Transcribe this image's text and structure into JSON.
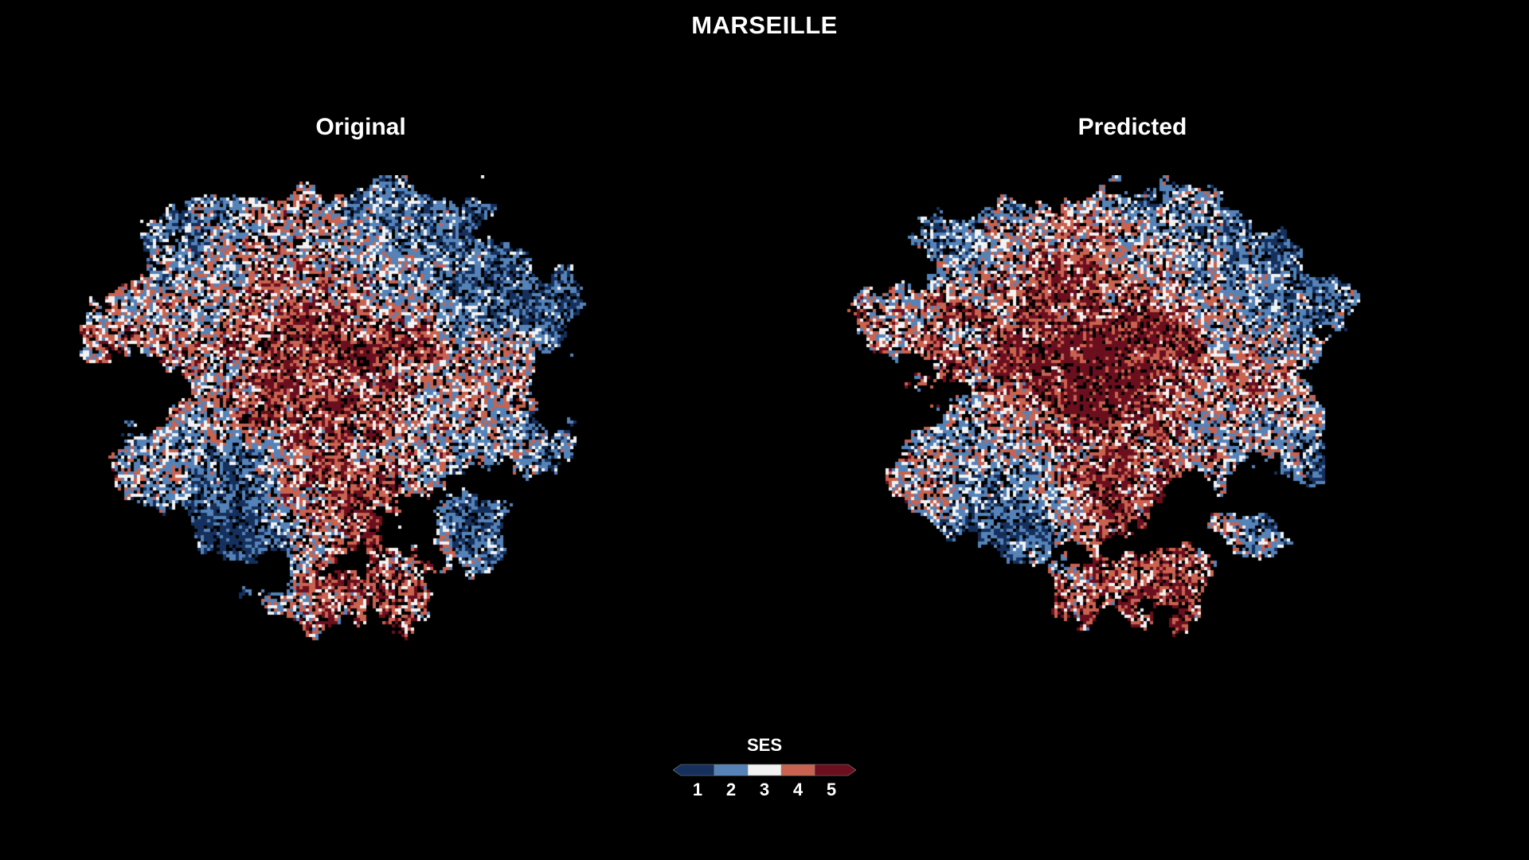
{
  "title": "MARSEILLE",
  "panels": {
    "original": {
      "title": "Original"
    },
    "predicted": {
      "title": "Predicted"
    }
  },
  "legend": {
    "title": "SES",
    "classes": [
      {
        "label": "1",
        "color": "#15305c"
      },
      {
        "label": "2",
        "color": "#5583b8"
      },
      {
        "label": "3",
        "color": "#f2f2f2"
      },
      {
        "label": "4",
        "color": "#c9624f"
      },
      {
        "label": "5",
        "color": "#6b0f1f"
      }
    ]
  },
  "colors": {
    "background": "#000000",
    "text": "#ffffff"
  }
}
